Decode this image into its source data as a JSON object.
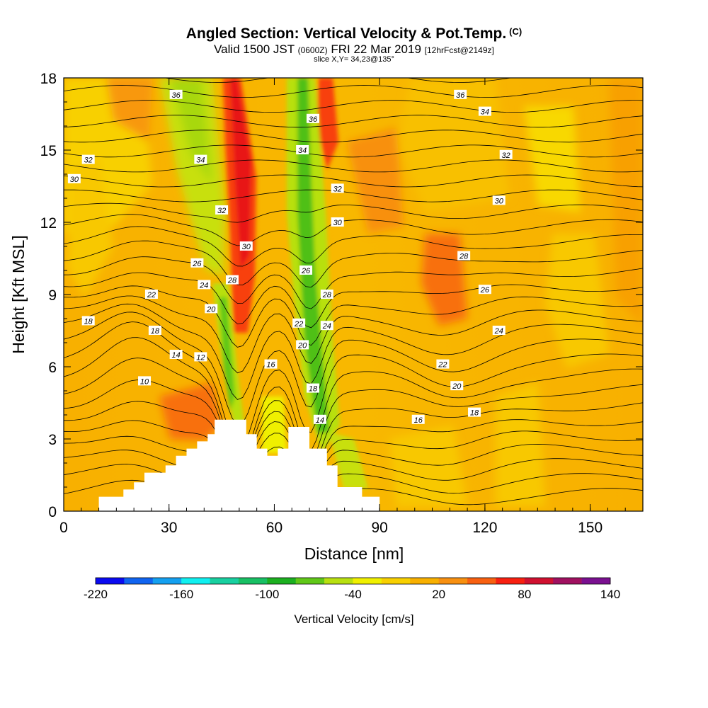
{
  "title": "Angled Section: Vertical Velocity & Pot.Temp.",
  "title_suffix": "(C)",
  "subtitle_prefix": "Valid 1500 JST",
  "subtitle_utc": "(0600Z)",
  "subtitle_date": "FRI 22 Mar 2019",
  "subtitle_fcst": "[12hrFcst@2149z]",
  "slice_label": "slice X,Y= 34,23@135°",
  "chart_data": {
    "type": "contour-section",
    "xlabel": "Distance [nm]",
    "ylabel": "Height [Kft MSL]",
    "xlim": [
      0,
      165
    ],
    "ylim": [
      0,
      18
    ],
    "x_ticks": [
      "0",
      "30",
      "60",
      "90",
      "120",
      "150"
    ],
    "y_ticks": [
      "0",
      "3",
      "6",
      "9",
      "12",
      "15",
      "18"
    ],
    "terrain": [
      [
        10,
        0.0
      ],
      [
        10,
        0.6
      ],
      [
        17,
        0.6
      ],
      [
        17,
        0.9
      ],
      [
        20,
        0.9
      ],
      [
        20,
        1.2
      ],
      [
        23,
        1.2
      ],
      [
        23,
        1.6
      ],
      [
        29,
        1.6
      ],
      [
        29,
        1.9
      ],
      [
        32,
        1.9
      ],
      [
        32,
        2.3
      ],
      [
        35,
        2.3
      ],
      [
        35,
        2.6
      ],
      [
        38,
        2.6
      ],
      [
        38,
        2.9
      ],
      [
        41,
        2.9
      ],
      [
        41,
        3.2
      ],
      [
        43,
        3.2
      ],
      [
        43,
        3.8
      ],
      [
        52,
        3.8
      ],
      [
        52,
        3.2
      ],
      [
        55,
        3.2
      ],
      [
        55,
        2.6
      ],
      [
        58,
        2.6
      ],
      [
        58,
        2.3
      ],
      [
        61,
        2.3
      ],
      [
        61,
        2.6
      ],
      [
        64,
        2.6
      ],
      [
        64,
        3.5
      ],
      [
        70,
        3.5
      ],
      [
        70,
        2.6
      ],
      [
        75,
        2.6
      ],
      [
        75,
        1.9
      ],
      [
        78,
        1.9
      ],
      [
        78,
        1.0
      ],
      [
        85,
        1.0
      ],
      [
        85,
        0.6
      ],
      [
        90,
        0.6
      ],
      [
        90,
        0.0
      ]
    ],
    "theta_labels": [
      {
        "x": 32,
        "y": 17.3,
        "text": "36"
      },
      {
        "x": 39,
        "y": 14.6,
        "text": "34"
      },
      {
        "x": 45,
        "y": 12.5,
        "text": "32"
      },
      {
        "x": 52,
        "y": 11.0,
        "text": "30"
      },
      {
        "x": 38,
        "y": 10.3,
        "text": "26"
      },
      {
        "x": 40,
        "y": 9.4,
        "text": "24"
      },
      {
        "x": 48,
        "y": 9.6,
        "text": "28"
      },
      {
        "x": 25,
        "y": 9.0,
        "text": "22"
      },
      {
        "x": 42,
        "y": 8.4,
        "text": "20"
      },
      {
        "x": 7,
        "y": 7.9,
        "text": "18"
      },
      {
        "x": 26,
        "y": 7.5,
        "text": "18"
      },
      {
        "x": 32,
        "y": 6.5,
        "text": "14"
      },
      {
        "x": 39,
        "y": 6.4,
        "text": "12"
      },
      {
        "x": 23,
        "y": 5.4,
        "text": "10"
      },
      {
        "x": 59,
        "y": 6.1,
        "text": "16"
      },
      {
        "x": 7,
        "y": 14.6,
        "text": "32"
      },
      {
        "x": 3,
        "y": 13.8,
        "text": "30"
      },
      {
        "x": 71,
        "y": 16.3,
        "text": "36"
      },
      {
        "x": 68,
        "y": 15.0,
        "text": "34"
      },
      {
        "x": 78,
        "y": 13.4,
        "text": "32"
      },
      {
        "x": 78,
        "y": 12.0,
        "text": "30"
      },
      {
        "x": 69,
        "y": 10.0,
        "text": "26"
      },
      {
        "x": 75,
        "y": 9.0,
        "text": "28"
      },
      {
        "x": 67,
        "y": 7.8,
        "text": "22"
      },
      {
        "x": 75,
        "y": 7.7,
        "text": "24"
      },
      {
        "x": 68,
        "y": 6.9,
        "text": "20"
      },
      {
        "x": 71,
        "y": 5.1,
        "text": "18"
      },
      {
        "x": 73,
        "y": 3.8,
        "text": "14"
      },
      {
        "x": 113,
        "y": 17.3,
        "text": "36"
      },
      {
        "x": 120,
        "y": 16.6,
        "text": "34"
      },
      {
        "x": 126,
        "y": 14.8,
        "text": "32"
      },
      {
        "x": 124,
        "y": 12.9,
        "text": "30"
      },
      {
        "x": 114,
        "y": 10.6,
        "text": "28"
      },
      {
        "x": 120,
        "y": 9.2,
        "text": "26"
      },
      {
        "x": 124,
        "y": 7.5,
        "text": "24"
      },
      {
        "x": 108,
        "y": 6.1,
        "text": "22"
      },
      {
        "x": 112,
        "y": 5.2,
        "text": "20"
      },
      {
        "x": 117,
        "y": 4.1,
        "text": "18"
      },
      {
        "x": 101,
        "y": 3.8,
        "text": "16"
      }
    ],
    "colorbar": {
      "label": "Vertical Velocity [cm/s]",
      "min": -220,
      "max": 140,
      "tick_labels": [
        "-220",
        "-160",
        "-100",
        "-40",
        "20",
        "80",
        "140"
      ],
      "colors": [
        "#0a0af0",
        "#1064f0",
        "#14a0f0",
        "#10f0f0",
        "#18d0a0",
        "#18c064",
        "#1cb020",
        "#60c818",
        "#b8e010",
        "#f0f000",
        "#f8d000",
        "#f8b000",
        "#f89010",
        "#f86010",
        "#f82010",
        "#d01030",
        "#a01060",
        "#7a1090"
      ]
    }
  }
}
